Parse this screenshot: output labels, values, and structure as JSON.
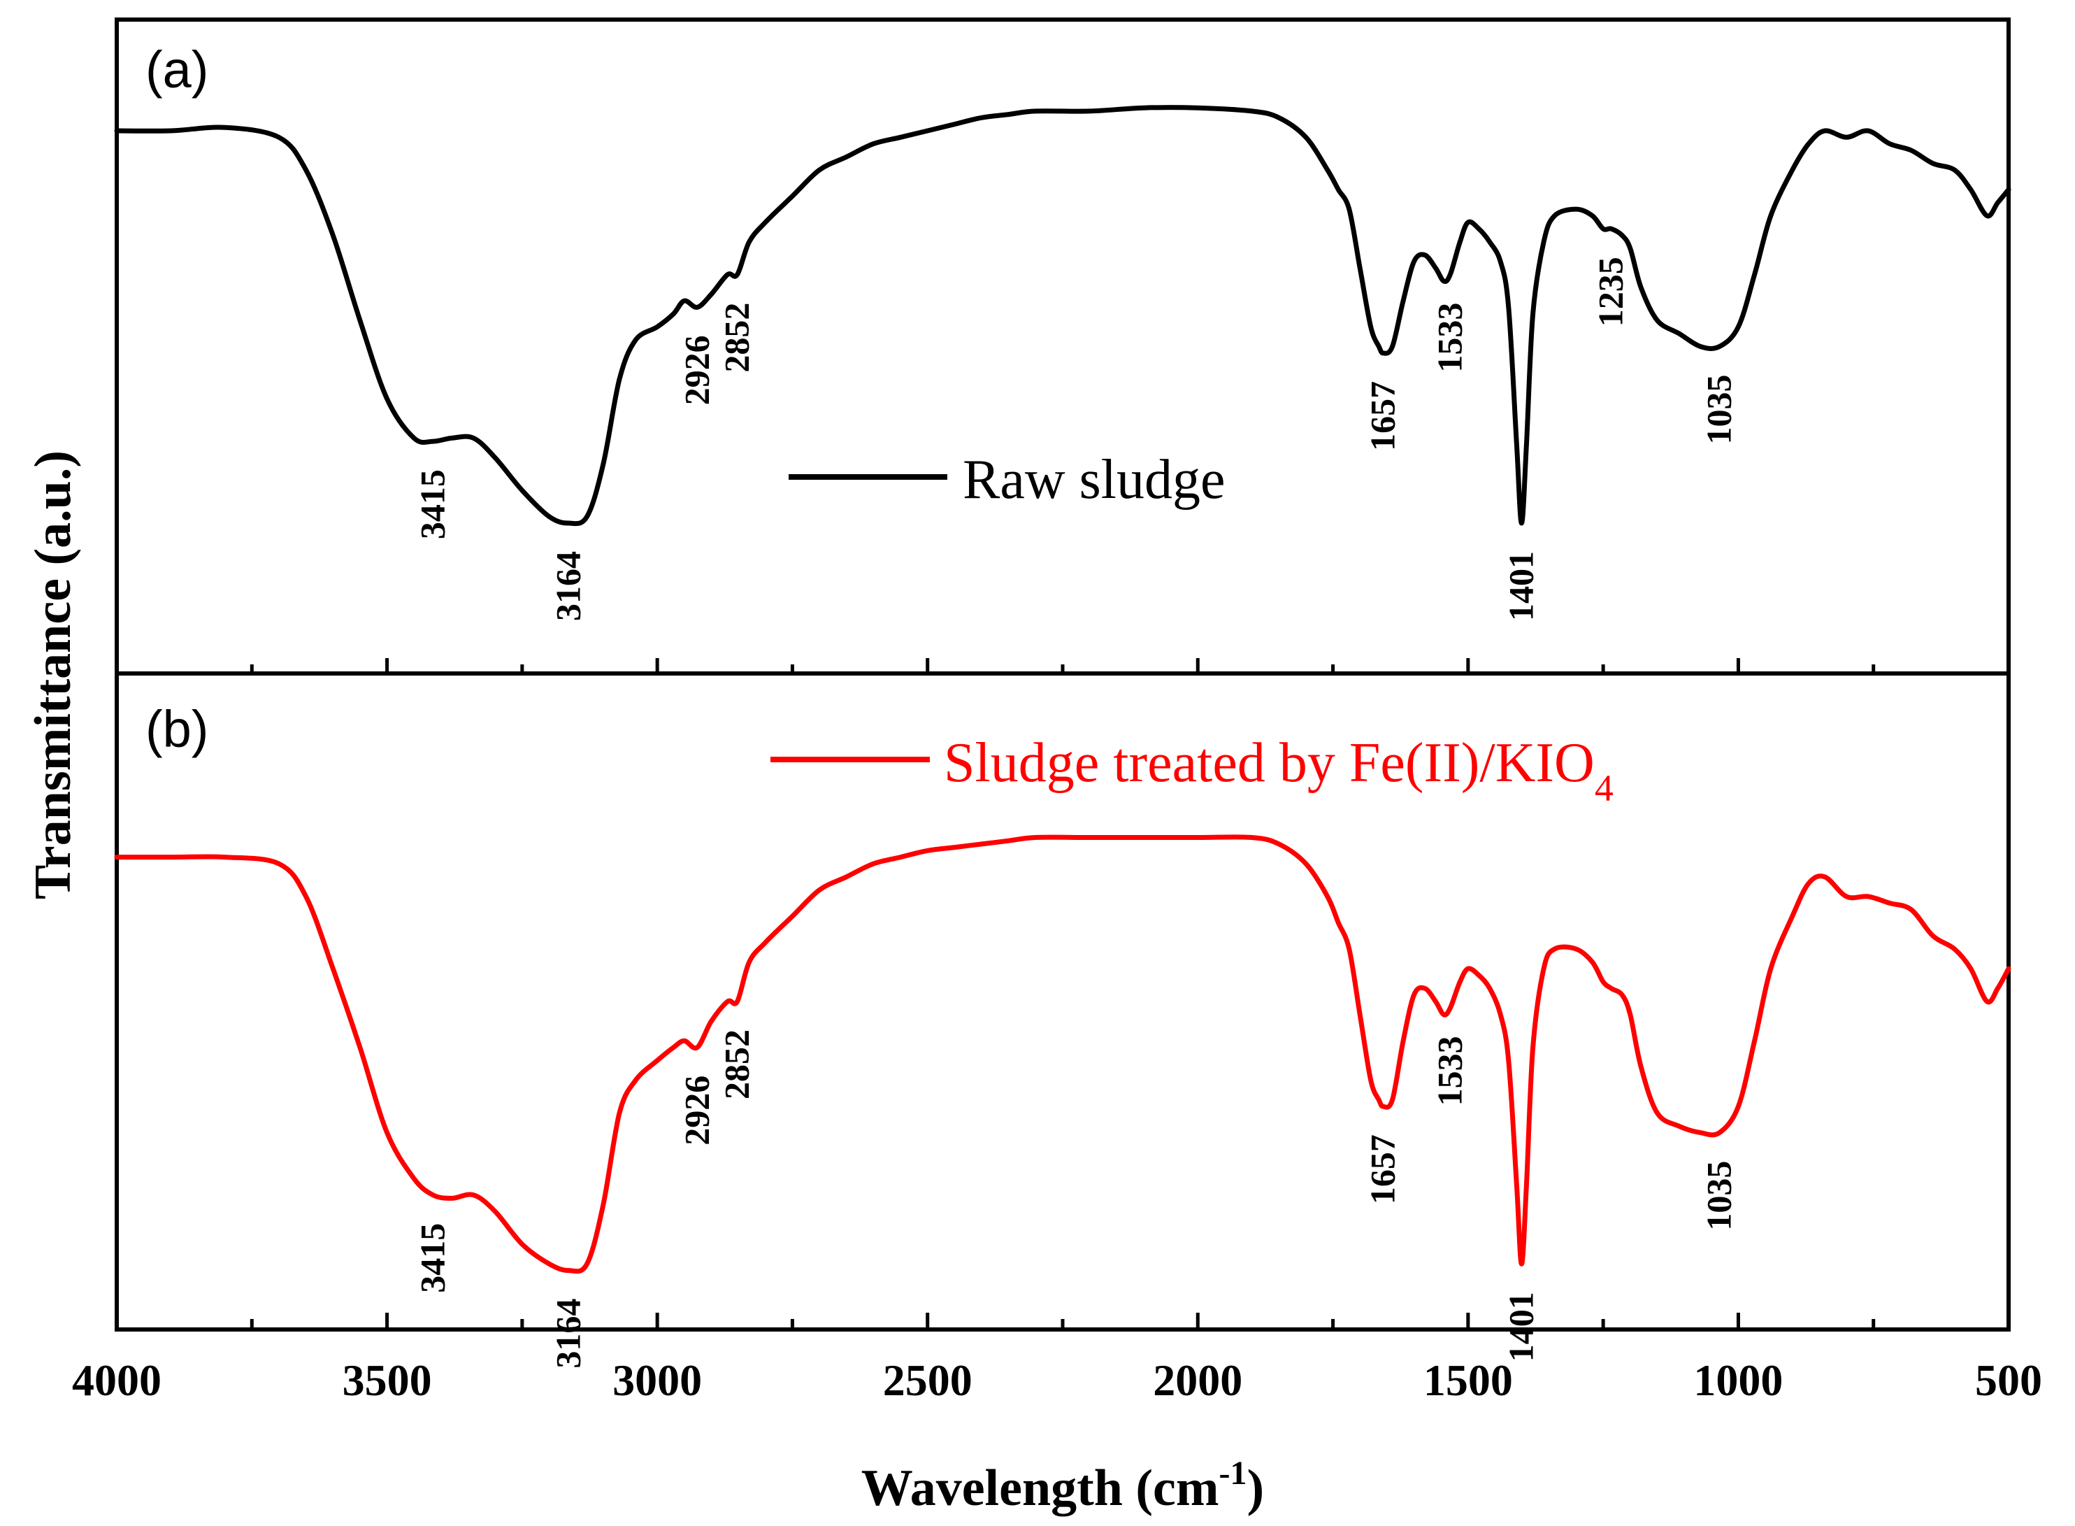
{
  "chart_data": {
    "type": "line",
    "xlabel": "Wavelength (cm",
    "xlabel_superscript": "-1",
    "xlabel_suffix": ")",
    "ylabel": "Transmittance (a.u.)",
    "xlim": [
      4000,
      500
    ],
    "x_ticks": [
      "4000",
      "3500",
      "3000",
      "2500",
      "2000",
      "1500",
      "1000",
      "500"
    ],
    "panels": [
      {
        "label": "(a)",
        "legend": {
          "text": "Raw sludge",
          "color": "#000000",
          "subscript": ""
        },
        "series": {
          "name": "Raw sludge",
          "color": "#000000",
          "points": [
            [
              4000,
              0.83
            ],
            [
              3900,
              0.83
            ],
            [
              3800,
              0.835
            ],
            [
              3700,
              0.82
            ],
            [
              3650,
              0.77
            ],
            [
              3600,
              0.67
            ],
            [
              3550,
              0.54
            ],
            [
              3500,
              0.42
            ],
            [
              3450,
              0.36
            ],
            [
              3415,
              0.355
            ],
            [
              3380,
              0.36
            ],
            [
              3340,
              0.36
            ],
            [
              3300,
              0.33
            ],
            [
              3250,
              0.28
            ],
            [
              3200,
              0.24
            ],
            [
              3164,
              0.23
            ],
            [
              3130,
              0.24
            ],
            [
              3100,
              0.32
            ],
            [
              3070,
              0.45
            ],
            [
              3040,
              0.51
            ],
            [
              3000,
              0.53
            ],
            [
              2970,
              0.55
            ],
            [
              2950,
              0.57
            ],
            [
              2926,
              0.56
            ],
            [
              2900,
              0.58
            ],
            [
              2870,
              0.61
            ],
            [
              2852,
              0.61
            ],
            [
              2830,
              0.66
            ],
            [
              2800,
              0.69
            ],
            [
              2750,
              0.73
            ],
            [
              2700,
              0.77
            ],
            [
              2650,
              0.79
            ],
            [
              2600,
              0.81
            ],
            [
              2550,
              0.82
            ],
            [
              2500,
              0.83
            ],
            [
              2450,
              0.84
            ],
            [
              2400,
              0.85
            ],
            [
              2350,
              0.855
            ],
            [
              2300,
              0.86
            ],
            [
              2200,
              0.86
            ],
            [
              2100,
              0.865
            ],
            [
              2000,
              0.865
            ],
            [
              1900,
              0.86
            ],
            [
              1850,
              0.85
            ],
            [
              1800,
              0.82
            ],
            [
              1760,
              0.77
            ],
            [
              1740,
              0.74
            ],
            [
              1720,
              0.71
            ],
            [
              1700,
              0.62
            ],
            [
              1680,
              0.53
            ],
            [
              1665,
              0.5
            ],
            [
              1657,
              0.49
            ],
            [
              1640,
              0.5
            ],
            [
              1620,
              0.57
            ],
            [
              1600,
              0.63
            ],
            [
              1580,
              0.64
            ],
            [
              1560,
              0.62
            ],
            [
              1545,
              0.6
            ],
            [
              1533,
              0.61
            ],
            [
              1515,
              0.66
            ],
            [
              1500,
              0.69
            ],
            [
              1480,
              0.68
            ],
            [
              1460,
              0.66
            ],
            [
              1440,
              0.63
            ],
            [
              1425,
              0.56
            ],
            [
              1410,
              0.35
            ],
            [
              1401,
              0.23
            ],
            [
              1392,
              0.35
            ],
            [
              1380,
              0.55
            ],
            [
              1360,
              0.66
            ],
            [
              1340,
              0.7
            ],
            [
              1300,
              0.71
            ],
            [
              1270,
              0.7
            ],
            [
              1250,
              0.68
            ],
            [
              1235,
              0.68
            ],
            [
              1215,
              0.67
            ],
            [
              1200,
              0.65
            ],
            [
              1180,
              0.59
            ],
            [
              1150,
              0.54
            ],
            [
              1110,
              0.52
            ],
            [
              1070,
              0.5
            ],
            [
              1035,
              0.5
            ],
            [
              1000,
              0.53
            ],
            [
              970,
              0.61
            ],
            [
              940,
              0.7
            ],
            [
              900,
              0.77
            ],
            [
              870,
              0.81
            ],
            [
              840,
              0.83
            ],
            [
              800,
              0.82
            ],
            [
              760,
              0.83
            ],
            [
              720,
              0.81
            ],
            [
              680,
              0.8
            ],
            [
              640,
              0.78
            ],
            [
              600,
              0.77
            ],
            [
              570,
              0.74
            ],
            [
              540,
              0.7
            ],
            [
              520,
              0.72
            ],
            [
              500,
              0.74
            ]
          ]
        },
        "peak_labels": [
          "3415",
          "3164",
          "2926",
          "2852",
          "1657",
          "1533",
          "1401",
          "1235",
          "1035"
        ]
      },
      {
        "label": "(b)",
        "legend": {
          "text": "Sludge treated by Fe(II)/KIO",
          "color": "#ff0000",
          "subscript": "4"
        },
        "series": {
          "name": "Sludge treated by Fe(II)/KIO4",
          "color": "#ff0000",
          "points": [
            [
              4000,
              0.72
            ],
            [
              3900,
              0.72
            ],
            [
              3800,
              0.72
            ],
            [
              3700,
              0.71
            ],
            [
              3650,
              0.66
            ],
            [
              3600,
              0.55
            ],
            [
              3550,
              0.43
            ],
            [
              3500,
              0.3
            ],
            [
              3450,
              0.23
            ],
            [
              3415,
              0.205
            ],
            [
              3380,
              0.2
            ],
            [
              3340,
              0.205
            ],
            [
              3300,
              0.18
            ],
            [
              3250,
              0.13
            ],
            [
              3200,
              0.1
            ],
            [
              3164,
              0.09
            ],
            [
              3130,
              0.1
            ],
            [
              3100,
              0.19
            ],
            [
              3070,
              0.33
            ],
            [
              3040,
              0.38
            ],
            [
              3000,
              0.41
            ],
            [
              2970,
              0.43
            ],
            [
              2950,
              0.44
            ],
            [
              2926,
              0.43
            ],
            [
              2900,
              0.47
            ],
            [
              2870,
              0.5
            ],
            [
              2852,
              0.5
            ],
            [
              2830,
              0.56
            ],
            [
              2800,
              0.59
            ],
            [
              2750,
              0.63
            ],
            [
              2700,
              0.67
            ],
            [
              2650,
              0.69
            ],
            [
              2600,
              0.71
            ],
            [
              2550,
              0.72
            ],
            [
              2500,
              0.73
            ],
            [
              2450,
              0.735
            ],
            [
              2400,
              0.74
            ],
            [
              2350,
              0.745
            ],
            [
              2300,
              0.75
            ],
            [
              2200,
              0.75
            ],
            [
              2100,
              0.75
            ],
            [
              2000,
              0.75
            ],
            [
              1900,
              0.75
            ],
            [
              1850,
              0.74
            ],
            [
              1800,
              0.71
            ],
            [
              1760,
              0.66
            ],
            [
              1740,
              0.62
            ],
            [
              1720,
              0.58
            ],
            [
              1700,
              0.48
            ],
            [
              1680,
              0.38
            ],
            [
              1665,
              0.35
            ],
            [
              1657,
              0.34
            ],
            [
              1640,
              0.35
            ],
            [
              1620,
              0.44
            ],
            [
              1600,
              0.51
            ],
            [
              1580,
              0.52
            ],
            [
              1560,
              0.5
            ],
            [
              1545,
              0.48
            ],
            [
              1533,
              0.49
            ],
            [
              1515,
              0.53
            ],
            [
              1500,
              0.55
            ],
            [
              1480,
              0.54
            ],
            [
              1460,
              0.52
            ],
            [
              1440,
              0.48
            ],
            [
              1425,
              0.41
            ],
            [
              1410,
              0.22
            ],
            [
              1401,
              0.1
            ],
            [
              1392,
              0.22
            ],
            [
              1380,
              0.43
            ],
            [
              1360,
              0.55
            ],
            [
              1340,
              0.58
            ],
            [
              1300,
              0.58
            ],
            [
              1270,
              0.56
            ],
            [
              1250,
              0.53
            ],
            [
              1235,
              0.52
            ],
            [
              1215,
              0.51
            ],
            [
              1200,
              0.48
            ],
            [
              1180,
              0.4
            ],
            [
              1150,
              0.33
            ],
            [
              1110,
              0.31
            ],
            [
              1070,
              0.3
            ],
            [
              1035,
              0.3
            ],
            [
              1000,
              0.34
            ],
            [
              970,
              0.44
            ],
            [
              940,
              0.55
            ],
            [
              900,
              0.63
            ],
            [
              870,
              0.68
            ],
            [
              840,
              0.69
            ],
            [
              800,
              0.66
            ],
            [
              760,
              0.66
            ],
            [
              720,
              0.65
            ],
            [
              680,
              0.64
            ],
            [
              640,
              0.6
            ],
            [
              600,
              0.58
            ],
            [
              570,
              0.55
            ],
            [
              540,
              0.5
            ],
            [
              520,
              0.52
            ],
            [
              500,
              0.55
            ]
          ]
        },
        "peak_labels": [
          "3415",
          "3164",
          "2926",
          "2852",
          "1657",
          "1533",
          "1401",
          "1035"
        ]
      }
    ]
  }
}
